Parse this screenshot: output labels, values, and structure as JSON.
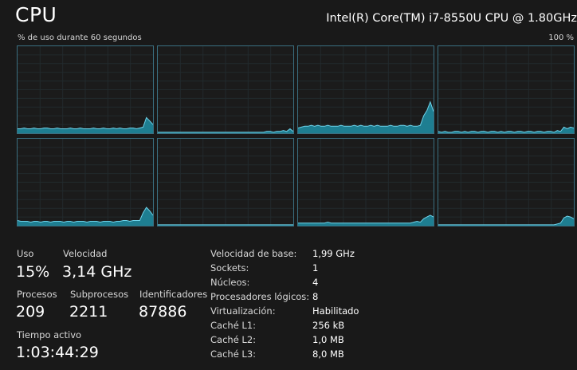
{
  "header": {
    "title": "CPU",
    "cpu_model": "Intel(R) Core(TM) i7-8550U CPU @ 1.80GHz",
    "graph_label": "% de uso durante 60 segundos",
    "graph_max": "100 %"
  },
  "colors": {
    "background": "#191919",
    "grid_border": "#3a6f80",
    "graph_fill": "#1f8fa6",
    "graph_line": "#6fd3ea"
  },
  "graphs": [
    {
      "values": [
        5,
        5,
        6,
        5,
        5,
        6,
        5,
        5,
        6,
        6,
        5,
        5,
        6,
        5,
        5,
        5,
        6,
        5,
        5,
        6,
        5,
        5,
        5,
        6,
        5,
        5,
        6,
        5,
        5,
        6,
        5,
        6,
        5,
        5,
        6,
        6,
        5,
        6,
        7,
        18,
        14,
        10
      ]
    },
    {
      "values": [
        1,
        1,
        1,
        1,
        1,
        1,
        1,
        1,
        1,
        1,
        1,
        1,
        1,
        1,
        1,
        1,
        1,
        1,
        1,
        1,
        1,
        1,
        1,
        1,
        1,
        1,
        1,
        1,
        1,
        1,
        1,
        1,
        1,
        2,
        2,
        1,
        2,
        2,
        3,
        2,
        5,
        2
      ]
    },
    {
      "values": [
        6,
        7,
        8,
        8,
        9,
        8,
        9,
        8,
        8,
        9,
        8,
        8,
        8,
        9,
        8,
        8,
        8,
        9,
        8,
        9,
        8,
        8,
        9,
        8,
        9,
        8,
        8,
        8,
        9,
        8,
        8,
        9,
        9,
        8,
        9,
        8,
        8,
        9,
        20,
        26,
        36,
        25
      ]
    },
    {
      "values": [
        2,
        1,
        2,
        1,
        1,
        2,
        2,
        1,
        2,
        1,
        2,
        2,
        1,
        2,
        2,
        1,
        2,
        2,
        1,
        2,
        1,
        2,
        2,
        1,
        2,
        2,
        1,
        2,
        2,
        1,
        2,
        2,
        1,
        2,
        2,
        1,
        3,
        2,
        7,
        5,
        7,
        6
      ]
    },
    {
      "values": [
        6,
        5,
        5,
        5,
        4,
        5,
        5,
        4,
        5,
        5,
        4,
        5,
        5,
        5,
        4,
        5,
        5,
        4,
        5,
        5,
        5,
        4,
        5,
        5,
        5,
        4,
        5,
        5,
        5,
        4,
        5,
        5,
        6,
        6,
        5,
        6,
        6,
        6,
        15,
        21,
        17,
        12
      ]
    },
    {
      "values": [
        1,
        1,
        1,
        1,
        1,
        1,
        1,
        1,
        1,
        1,
        1,
        1,
        1,
        1,
        1,
        1,
        1,
        1,
        1,
        1,
        1,
        1,
        1,
        1,
        1,
        1,
        1,
        1,
        1,
        1,
        1,
        1,
        1,
        1,
        1,
        1,
        1,
        1,
        1,
        1,
        1,
        1
      ]
    },
    {
      "values": [
        3,
        3,
        3,
        3,
        3,
        3,
        3,
        3,
        3,
        4,
        3,
        3,
        3,
        3,
        3,
        3,
        3,
        3,
        3,
        3,
        3,
        3,
        3,
        3,
        3,
        3,
        3,
        3,
        3,
        3,
        3,
        3,
        3,
        3,
        3,
        4,
        5,
        4,
        8,
        10,
        12,
        10
      ]
    },
    {
      "values": [
        1,
        1,
        1,
        1,
        1,
        1,
        1,
        1,
        1,
        1,
        1,
        1,
        1,
        1,
        1,
        1,
        1,
        1,
        1,
        1,
        1,
        1,
        1,
        1,
        1,
        1,
        1,
        1,
        1,
        1,
        1,
        1,
        1,
        1,
        1,
        1,
        2,
        3,
        9,
        11,
        10,
        8
      ]
    }
  ],
  "stats": {
    "uso_label": "Uso",
    "uso_value": "15%",
    "velocidad_label": "Velocidad",
    "velocidad_value": "3,14 GHz",
    "procesos_label": "Procesos",
    "procesos_value": "209",
    "subprocesos_label": "Subprocesos",
    "subprocesos_value": "2211",
    "identificadores_label": "Identificadores",
    "identificadores_value": "87886",
    "tiempo_label": "Tiempo activo",
    "tiempo_value": "1:03:44:29"
  },
  "info": [
    {
      "label": "Velocidad de base:",
      "value": "1,99 GHz"
    },
    {
      "label": "Sockets:",
      "value": "1"
    },
    {
      "label": "Núcleos:",
      "value": "4"
    },
    {
      "label": "Procesadores lógicos:",
      "value": "8"
    },
    {
      "label": "Virtualización:",
      "value": "Habilitado"
    },
    {
      "label": "Caché L1:",
      "value": "256 kB"
    },
    {
      "label": "Caché L2:",
      "value": "1,0 MB"
    },
    {
      "label": "Caché L3:",
      "value": "8,0 MB"
    }
  ]
}
